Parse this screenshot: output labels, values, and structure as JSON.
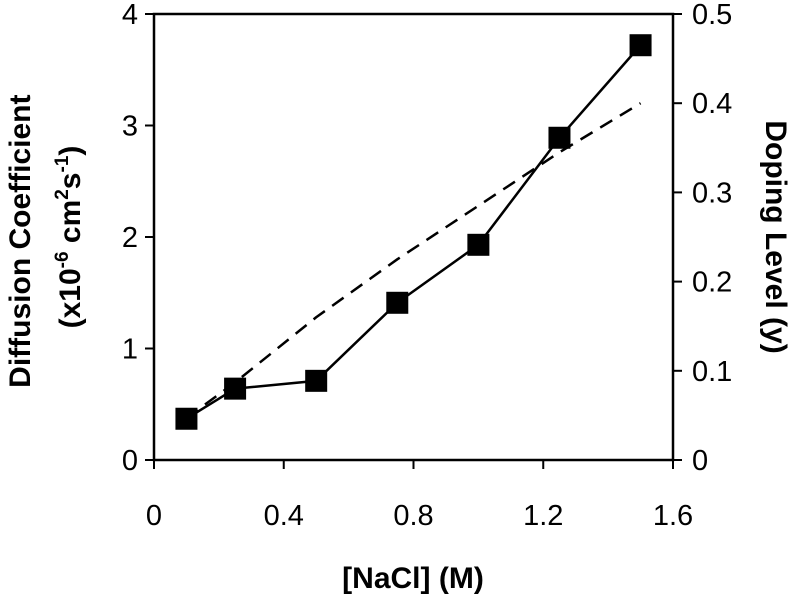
{
  "chart_data": {
    "type": "line",
    "xlabel": "[NaCl] (M)",
    "ylabel_left": {
      "line1": "Diffusion Coefficient",
      "line2_prefix": "(x10",
      "line2_exp1": "-6",
      "line2_mid": " cm",
      "line2_exp2": "2",
      "line2_mid2": "s",
      "line2_exp3": "-1",
      "line2_suffix": ")"
    },
    "ylabel_right": "Doping Level (y)",
    "xlim": [
      0,
      1.6
    ],
    "ylim_left": [
      0,
      4
    ],
    "ylim_right": [
      0,
      0.5
    ],
    "x_ticks": [
      "0",
      "0.4",
      "0.8",
      "1.2",
      "1.6"
    ],
    "y_left_ticks": [
      "0",
      "1",
      "2",
      "3",
      "4"
    ],
    "y_right_ticks": [
      "0",
      "0.1",
      "0.2",
      "0.3",
      "0.4",
      "0.5"
    ],
    "grid": false,
    "series": [
      {
        "axis": "left",
        "style": "solid line with filled square markers",
        "x": [
          0.1,
          0.25,
          0.5,
          0.75,
          1.0,
          1.25,
          1.5
        ],
        "values": [
          0.37,
          0.64,
          0.71,
          1.41,
          1.93,
          2.89,
          3.72
        ]
      },
      {
        "axis": "right",
        "style": "dashed line",
        "x": [
          0.1,
          0.25,
          0.5,
          0.75,
          1.0,
          1.25,
          1.5
        ],
        "values": [
          0.047,
          0.087,
          0.16,
          0.225,
          0.285,
          0.345,
          0.4
        ]
      }
    ],
    "colors": {
      "line": "#000000",
      "background": "#ffffff"
    }
  }
}
